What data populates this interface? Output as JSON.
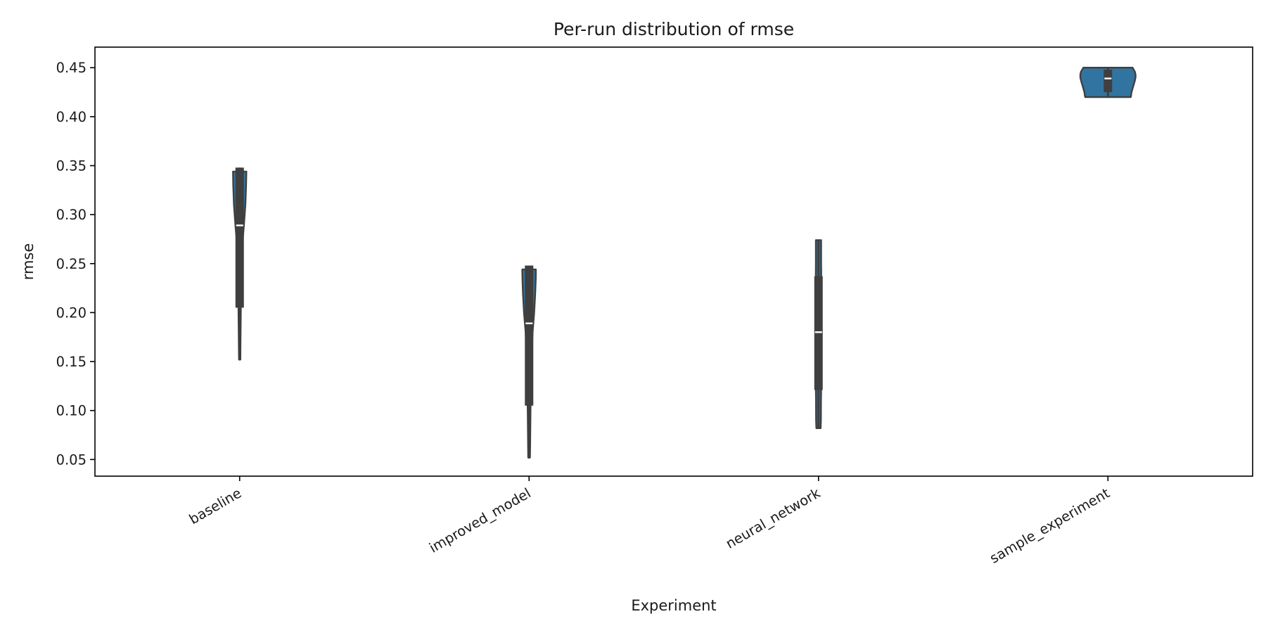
{
  "chart_data": {
    "type": "violin",
    "title": "Per-run distribution of rmse",
    "xlabel": "Experiment",
    "ylabel": "rmse",
    "ylim": [
      0.033,
      0.471
    ],
    "yticks": [
      0.05,
      0.1,
      0.15,
      0.2,
      0.25,
      0.3,
      0.35,
      0.4,
      0.45
    ],
    "ytick_labels": [
      "0.05",
      "0.10",
      "0.15",
      "0.20",
      "0.25",
      "0.30",
      "0.35",
      "0.40",
      "0.45"
    ],
    "categories": [
      "baseline",
      "improved_model",
      "neural_network",
      "sample_experiment"
    ],
    "color": "#3274a1",
    "edge_color": "#3f3f3f",
    "grid": false,
    "legend": "none",
    "series": [
      {
        "category": "baseline",
        "min": 0.152,
        "q1": 0.205,
        "median": 0.289,
        "q3": 0.348,
        "max": 0.348,
        "profile": [
          [
            0.152,
            0.1
          ],
          [
            0.165,
            0.12
          ],
          [
            0.2,
            0.16
          ],
          [
            0.25,
            0.24
          ],
          [
            0.27,
            0.38
          ],
          [
            0.29,
            0.62
          ],
          [
            0.31,
            0.82
          ],
          [
            0.33,
            0.92
          ],
          [
            0.344,
            0.95
          ]
        ]
      },
      {
        "category": "improved_model",
        "min": 0.051,
        "q1": 0.105,
        "median": 0.189,
        "q3": 0.248,
        "max": 0.248,
        "profile": [
          [
            0.052,
            0.12
          ],
          [
            0.065,
            0.15
          ],
          [
            0.1,
            0.2
          ],
          [
            0.15,
            0.31
          ],
          [
            0.18,
            0.5
          ],
          [
            0.2,
            0.72
          ],
          [
            0.22,
            0.88
          ],
          [
            0.235,
            0.95
          ],
          [
            0.244,
            0.96
          ]
        ]
      },
      {
        "category": "neural_network",
        "min": 0.082,
        "q1": 0.121,
        "median": 0.18,
        "q3": 0.237,
        "max": 0.274,
        "profile": [
          [
            0.082,
            0.31
          ],
          [
            0.09,
            0.34
          ],
          [
            0.11,
            0.36
          ],
          [
            0.13,
            0.39
          ],
          [
            0.16,
            0.43
          ],
          [
            0.18,
            0.44
          ],
          [
            0.2,
            0.43
          ],
          [
            0.23,
            0.4
          ],
          [
            0.25,
            0.38
          ],
          [
            0.274,
            0.38
          ]
        ]
      },
      {
        "category": "sample_experiment",
        "min": 0.42,
        "q1": 0.425,
        "median": 0.439,
        "q3": 0.448,
        "max": 0.45,
        "profile": [
          [
            0.42,
            3.25
          ],
          [
            0.425,
            3.35
          ],
          [
            0.43,
            3.55
          ],
          [
            0.436,
            3.8
          ],
          [
            0.44,
            3.93
          ],
          [
            0.443,
            3.92
          ],
          [
            0.446,
            3.82
          ],
          [
            0.45,
            3.5
          ]
        ]
      }
    ]
  }
}
